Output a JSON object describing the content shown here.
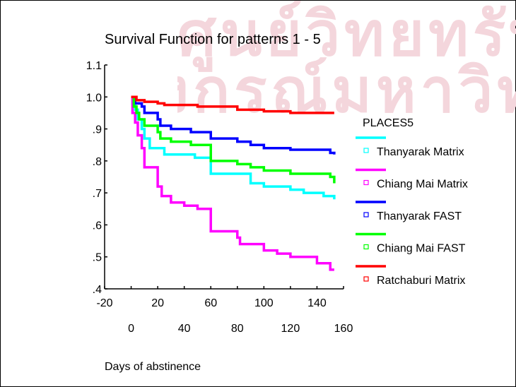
{
  "watermark": {
    "line1": "ศูนย์วิทยทรัพยากร",
    "line2": "จุฬาลงกรณ์มหาวิทยาลัย"
  },
  "chart_data": {
    "type": "line",
    "title": "Survival Function for patterns 1 - 5",
    "xlabel": "Days of abstinence",
    "ylabel": "",
    "legend_title": "PLACES5",
    "legend_position": "right",
    "xlim": [
      -20,
      160
    ],
    "ylim": [
      0.4,
      1.1
    ],
    "x_ticks_upper": [
      "-20",
      "20",
      "60",
      "100",
      "140"
    ],
    "x_ticks_lower": [
      "0",
      "40",
      "80",
      "120",
      "160"
    ],
    "y_ticks": [
      {
        "v": 1.1,
        "label": "1.1"
      },
      {
        "v": 1.0,
        "label": "1.0"
      },
      {
        "v": 0.9,
        "label": ".9"
      },
      {
        "v": 0.8,
        "label": ".8"
      },
      {
        "v": 0.7,
        "label": ".7"
      },
      {
        "v": 0.6,
        "label": ".6"
      },
      {
        "v": 0.5,
        "label": ".5"
      },
      {
        "v": 0.4,
        "label": ".4"
      }
    ],
    "series": [
      {
        "name": "Thanyarak Matrix",
        "color": "#00ffff",
        "steps": [
          [
            0,
            1.0
          ],
          [
            1,
            0.98
          ],
          [
            3,
            0.96
          ],
          [
            5,
            0.93
          ],
          [
            8,
            0.9
          ],
          [
            10,
            0.87
          ],
          [
            14,
            0.84
          ],
          [
            25,
            0.82
          ],
          [
            48,
            0.81
          ],
          [
            60,
            0.76
          ],
          [
            90,
            0.73
          ],
          [
            100,
            0.72
          ],
          [
            120,
            0.71
          ],
          [
            130,
            0.7
          ],
          [
            145,
            0.69
          ],
          [
            153,
            0.68
          ]
        ]
      },
      {
        "name": "Chiang Mai Matrix",
        "color": "#ff00ff",
        "steps": [
          [
            0,
            1.0
          ],
          [
            1,
            0.95
          ],
          [
            3,
            0.92
          ],
          [
            5,
            0.88
          ],
          [
            8,
            0.84
          ],
          [
            10,
            0.78
          ],
          [
            20,
            0.72
          ],
          [
            23,
            0.69
          ],
          [
            30,
            0.67
          ],
          [
            40,
            0.66
          ],
          [
            50,
            0.65
          ],
          [
            60,
            0.58
          ],
          [
            80,
            0.56
          ],
          [
            82,
            0.54
          ],
          [
            100,
            0.52
          ],
          [
            110,
            0.51
          ],
          [
            120,
            0.5
          ],
          [
            140,
            0.48
          ],
          [
            150,
            0.46
          ],
          [
            153,
            0.46
          ]
        ]
      },
      {
        "name": "Thanyarak FAST",
        "color": "#0000ff",
        "steps": [
          [
            0,
            1.0
          ],
          [
            3,
            0.98
          ],
          [
            8,
            0.97
          ],
          [
            10,
            0.95
          ],
          [
            20,
            0.93
          ],
          [
            22,
            0.91
          ],
          [
            30,
            0.9
          ],
          [
            45,
            0.89
          ],
          [
            60,
            0.87
          ],
          [
            80,
            0.86
          ],
          [
            90,
            0.85
          ],
          [
            100,
            0.84
          ],
          [
            120,
            0.835
          ],
          [
            150,
            0.825
          ],
          [
            153,
            0.82
          ]
        ]
      },
      {
        "name": "Chiang Mai FAST",
        "color": "#00ff00",
        "steps": [
          [
            0,
            1.0
          ],
          [
            2,
            0.97
          ],
          [
            4,
            0.95
          ],
          [
            6,
            0.93
          ],
          [
            10,
            0.91
          ],
          [
            20,
            0.89
          ],
          [
            22,
            0.87
          ],
          [
            30,
            0.86
          ],
          [
            45,
            0.85
          ],
          [
            60,
            0.8
          ],
          [
            80,
            0.79
          ],
          [
            90,
            0.78
          ],
          [
            100,
            0.77
          ],
          [
            120,
            0.76
          ],
          [
            150,
            0.75
          ],
          [
            153,
            0.73
          ]
        ]
      },
      {
        "name": "Ratchaburi Matrix",
        "color": "#ff0000",
        "steps": [
          [
            0,
            1.0
          ],
          [
            4,
            0.99
          ],
          [
            10,
            0.985
          ],
          [
            20,
            0.98
          ],
          [
            25,
            0.975
          ],
          [
            50,
            0.97
          ],
          [
            80,
            0.96
          ],
          [
            100,
            0.955
          ],
          [
            120,
            0.95
          ],
          [
            153,
            0.95
          ]
        ]
      }
    ]
  }
}
